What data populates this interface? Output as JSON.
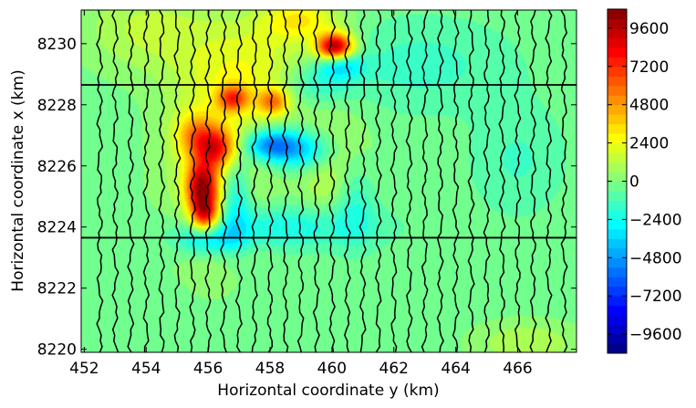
{
  "chart_data": {
    "type": "heatmap",
    "subtype": "filled-contour map with survey flight lines",
    "xlabel": "Horizontal coordinate y (km)",
    "ylabel": "Horizontal coordinate x (km)",
    "xlim": [
      451.9,
      467.9
    ],
    "ylim": [
      8219.9,
      8231.1
    ],
    "x_ticks": [
      "452",
      "454",
      "456",
      "458",
      "460",
      "462",
      "464",
      "466"
    ],
    "y_ticks": [
      "8220",
      "8222",
      "8224",
      "8226",
      "8228",
      "8230"
    ],
    "colorbar": {
      "colormap": "jet",
      "range": [
        -10800,
        10800
      ],
      "tick_labels": [
        "9600",
        "7200",
        "4800",
        "2400",
        "0",
        "−2400",
        "−4800",
        "−7200",
        "−9600"
      ],
      "tick_values": [
        9600,
        7200,
        4800,
        2400,
        0,
        -2400,
        -4800,
        -7200,
        -9600
      ]
    },
    "background_value": -300,
    "anomalies": [
      {
        "y": 455.8,
        "x": 8225.3,
        "value": 9000,
        "sy": 0.35,
        "sx": 0.6
      },
      {
        "y": 455.9,
        "x": 8224.4,
        "value": 6000,
        "sy": 0.3,
        "sx": 0.4
      },
      {
        "y": 456.3,
        "x": 8226.6,
        "value": 6000,
        "sy": 0.45,
        "sx": 0.45
      },
      {
        "y": 455.6,
        "x": 8227.0,
        "value": 4000,
        "sy": 0.45,
        "sx": 0.5
      },
      {
        "y": 456.8,
        "x": 8228.2,
        "value": 5600,
        "sy": 0.35,
        "sx": 0.3
      },
      {
        "y": 458.1,
        "x": 8228.1,
        "value": 4800,
        "sy": 0.35,
        "sx": 0.3
      },
      {
        "y": 460.1,
        "x": 8229.9,
        "value": 10000,
        "sy": 0.4,
        "sx": 0.3
      },
      {
        "y": 459.0,
        "x": 8230.8,
        "value": 3000,
        "sy": 0.9,
        "sx": 0.5
      },
      {
        "y": 457.5,
        "x": 8229.2,
        "value": 2200,
        "sy": 1.6,
        "sx": 1.2
      },
      {
        "y": 456.3,
        "x": 8226.0,
        "value": 2200,
        "sy": 1.2,
        "sx": 2.2
      },
      {
        "y": 458.0,
        "x": 8226.7,
        "value": -4800,
        "sy": 0.6,
        "sx": 0.35
      },
      {
        "y": 459.0,
        "x": 8226.5,
        "value": -3600,
        "sy": 0.8,
        "sx": 0.45
      },
      {
        "y": 456.9,
        "x": 8225.0,
        "value": -3200,
        "sy": 0.35,
        "sx": 1.1
      },
      {
        "y": 456.0,
        "x": 8223.6,
        "value": -3200,
        "sy": 0.7,
        "sx": 0.35
      },
      {
        "y": 458.3,
        "x": 8224.0,
        "value": -2400,
        "sy": 2.0,
        "sx": 0.5
      },
      {
        "y": 460.7,
        "x": 8225.0,
        "value": -2400,
        "sy": 0.5,
        "sx": 1.0
      },
      {
        "y": 460.3,
        "x": 8229.3,
        "value": -3000,
        "sy": 0.5,
        "sx": 0.3
      },
      {
        "y": 459.5,
        "x": 8228.7,
        "value": -2000,
        "sy": 0.8,
        "sx": 0.5
      },
      {
        "y": 460.2,
        "x": 8225.8,
        "value": 2200,
        "sy": 0.8,
        "sx": 1.2
      },
      {
        "y": 462.8,
        "x": 8229.3,
        "value": -1200,
        "sy": 2.0,
        "sx": 1.0
      },
      {
        "y": 466.3,
        "x": 8220.2,
        "value": 1500,
        "sy": 1.2,
        "sx": 0.5
      },
      {
        "y": 454.0,
        "x": 8230.5,
        "value": 1600,
        "sy": 1.5,
        "sx": 1.0
      },
      {
        "y": 466.0,
        "x": 8226.2,
        "value": -1000,
        "sy": 1.0,
        "sx": 1.2
      }
    ],
    "flight_lines": {
      "vertical_y_positions": [
        452.5,
        453.0,
        453.5,
        454.0,
        454.5,
        455.0,
        455.5,
        456.0,
        456.5,
        457.0,
        457.5,
        458.0,
        458.5,
        459.0,
        459.5,
        460.0,
        460.5,
        461.0,
        461.5,
        462.0,
        462.5,
        463.0,
        463.5,
        464.0,
        464.5,
        465.0,
        465.5,
        466.0,
        466.5,
        467.0,
        467.5
      ],
      "horizontal_x_positions": [
        8223.65,
        8228.65
      ],
      "color": "#000000"
    }
  }
}
